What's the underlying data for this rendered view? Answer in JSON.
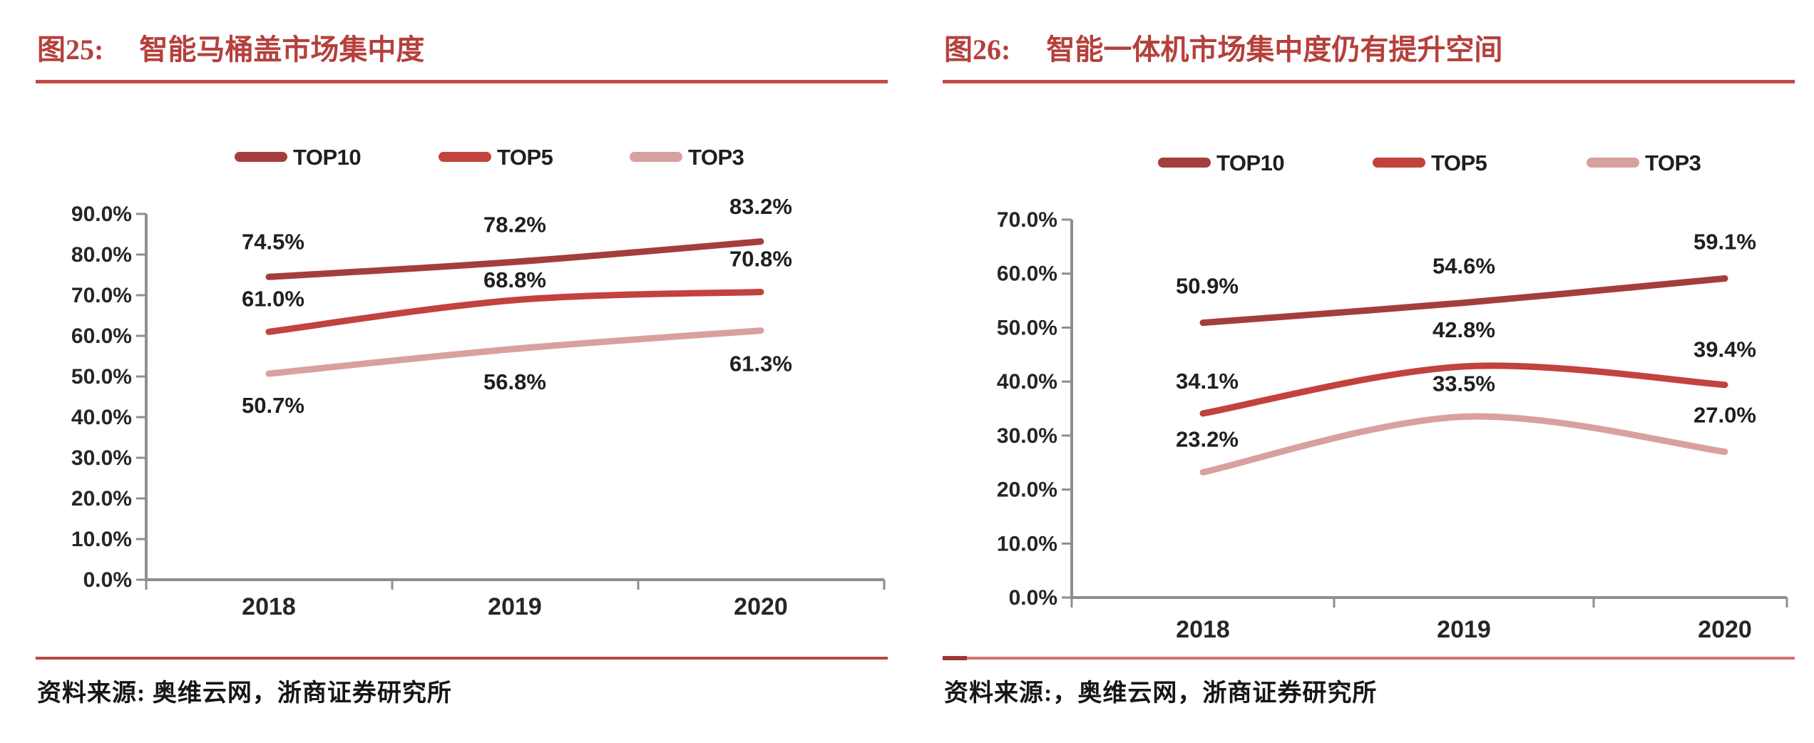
{
  "page": {
    "background": "#ffffff"
  },
  "colors": {
    "caption_red": "#B5403C",
    "caption_rule_red": "#C14B48",
    "bottom_rule_left": "#B64743",
    "bottom_rule_right": "#D07370",
    "bottom_rule_right_tip": "#9E3634",
    "axis_gray": "#8E8E8E",
    "chart_text": "#262626",
    "series_top10": "#A43E3C",
    "series_top5": "#C2423E",
    "series_top3": "#D9A0A0"
  },
  "figures": [
    {
      "caption_prefix": "图25:",
      "caption": "智能马桶盖市场集中度",
      "source": "资料来源: 奥维云网，浙商证券研究所"
    },
    {
      "caption_prefix": "图26:",
      "caption": "智能一体机市场集中度仍有提升空间",
      "source": "资料来源:，奥维云网，浙商证券研究所"
    }
  ],
  "chart_data": [
    {
      "type": "line",
      "title": "智能马桶盖市场集中度",
      "categories": [
        "2018",
        "2019",
        "2020"
      ],
      "xlabel": "",
      "ylabel": "",
      "ylim": [
        0,
        90
      ],
      "ytick_step": 10,
      "ytick_format": "0.0%",
      "grid": false,
      "legend_position": "top",
      "smoothed": true,
      "series": [
        {
          "name": "TOP10",
          "color": "#A43E3C",
          "values": [
            74.5,
            78.2,
            83.2
          ],
          "labels": [
            "74.5%",
            "78.2%",
            "83.2%"
          ],
          "label_dy": [
            -50,
            -53,
            -50
          ]
        },
        {
          "name": "TOP5",
          "color": "#C2423E",
          "values": [
            61.0,
            68.8,
            70.8
          ],
          "labels": [
            "61.0%",
            "68.8%",
            "70.8%"
          ],
          "label_dy": [
            -47,
            -29,
            -47
          ]
        },
        {
          "name": "TOP3",
          "color": "#D9A0A0",
          "values": [
            50.7,
            56.8,
            61.3
          ],
          "labels": [
            "50.7%",
            "56.8%",
            "61.3%"
          ],
          "label_dy": [
            44,
            46,
            46
          ]
        }
      ]
    },
    {
      "type": "line",
      "title": "智能一体机市场集中度仍有提升空间",
      "categories": [
        "2018",
        "2019",
        "2020"
      ],
      "xlabel": "",
      "ylabel": "",
      "ylim": [
        0,
        70
      ],
      "ytick_step": 10,
      "ytick_format": "0.0%",
      "grid": false,
      "legend_position": "top",
      "smoothed": true,
      "series": [
        {
          "name": "TOP10",
          "color": "#A43E3C",
          "values": [
            50.9,
            54.6,
            59.1
          ],
          "labels": [
            "50.9%",
            "54.6%",
            "59.1%"
          ],
          "label_dy": [
            -52,
            -52,
            -52
          ]
        },
        {
          "name": "TOP5",
          "color": "#C2423E",
          "values": [
            34.1,
            42.8,
            39.4
          ],
          "labels": [
            "34.1%",
            "42.8%",
            "39.4%"
          ],
          "label_dy": [
            -46,
            -52,
            -50
          ]
        },
        {
          "name": "TOP3",
          "color": "#D9A0A0",
          "values": [
            23.2,
            33.5,
            27.0
          ],
          "labels": [
            "23.2%",
            "33.5%",
            "27.0%"
          ],
          "label_dy": [
            -47,
            -47,
            -52
          ]
        }
      ]
    }
  ]
}
